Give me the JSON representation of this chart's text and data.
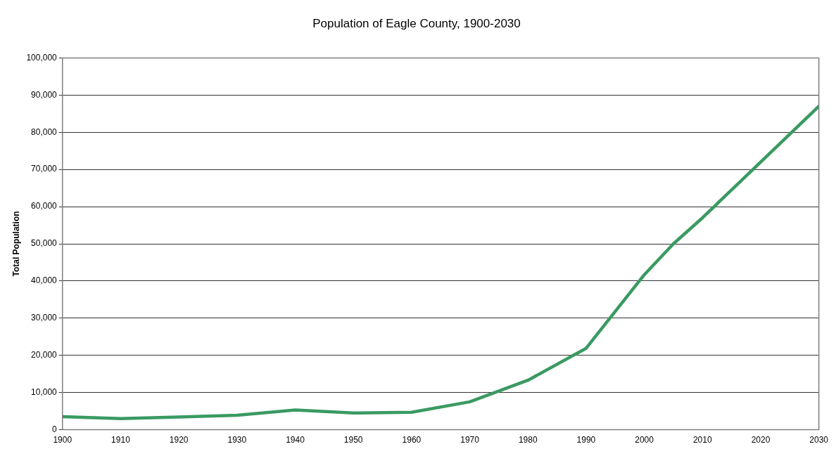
{
  "chart_data": {
    "type": "line",
    "title": "Population of Eagle County, 1900-2030",
    "ylabel": "Total Population",
    "x": [
      1900,
      1910,
      1920,
      1930,
      1940,
      1950,
      1960,
      1970,
      1980,
      1990,
      2000,
      2005,
      2010,
      2020,
      2030
    ],
    "series": [
      {
        "color": "#3a9a62",
        "values": [
          3500,
          3000,
          3400,
          3900,
          5300,
          4500,
          4700,
          7500,
          13300,
          21900,
          41700,
          50000,
          57000,
          72000,
          87000
        ]
      }
    ],
    "xlim": [
      1900,
      2030
    ],
    "xticks": [
      1900,
      1910,
      1920,
      1930,
      1940,
      1950,
      1960,
      1970,
      1980,
      1990,
      2000,
      2010,
      2020,
      2030
    ],
    "ylim": [
      0,
      100000
    ],
    "yticks": [
      0,
      {
        "value": 10000,
        "label": "10,000"
      },
      {
        "value": 20000,
        "label": "20,000"
      },
      {
        "value": 30000,
        "label": "30,000"
      },
      {
        "value": 40000,
        "label": "40,000"
      },
      {
        "value": 50000,
        "label": "50,000"
      },
      {
        "value": 60000,
        "label": "60,000"
      },
      {
        "value": 70000,
        "label": "70,000"
      },
      {
        "value": 80000,
        "label": "80,000"
      },
      {
        "value": 90000,
        "label": "90,000"
      },
      {
        "value": 100000,
        "label": "100,000"
      }
    ],
    "grid": "y",
    "legend": false,
    "marker": "none",
    "line_style": "solid"
  }
}
